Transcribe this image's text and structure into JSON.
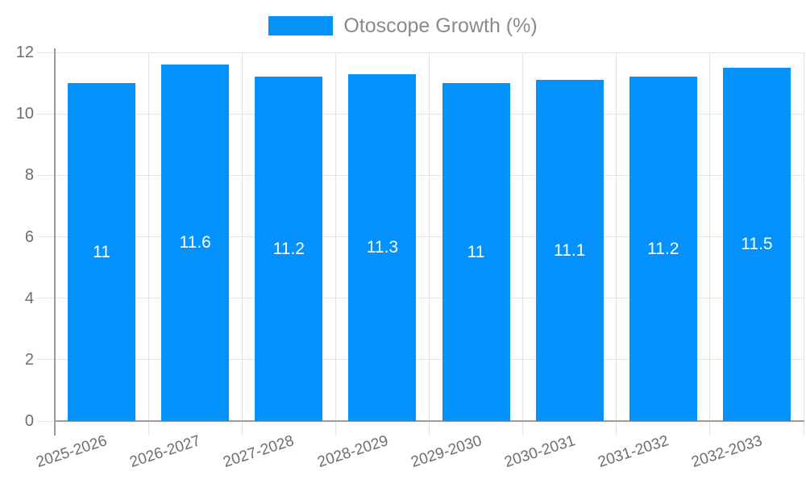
{
  "chart_data": {
    "type": "bar",
    "title": "",
    "legend": {
      "label": "Otoscope Growth (%)",
      "position": "top-center"
    },
    "categories": [
      "2025-2026",
      "2026-2027",
      "2027-2028",
      "2028-2029",
      "2029-2030",
      "2030-2031",
      "2031-2032",
      "2032-2033"
    ],
    "series": [
      {
        "name": "Otoscope Growth (%)",
        "values": [
          11,
          11.6,
          11.2,
          11.3,
          11,
          11.1,
          11.2,
          11.5
        ]
      }
    ],
    "xlabel": "",
    "ylabel": "",
    "ylim": [
      0,
      12
    ],
    "yticks": [
      0,
      2,
      4,
      6,
      8,
      10,
      12
    ],
    "grid": true,
    "x_label_rotation_deg": -18,
    "colors": {
      "bar": "#0591FB",
      "gridline": "#E3E3E3",
      "axis_line": "#9C9C9C",
      "tick_label": "#6E6E6E",
      "legend_text": "#8A8A8A",
      "value_label": "#FFFFFF",
      "background": "#FFFFFF"
    }
  }
}
